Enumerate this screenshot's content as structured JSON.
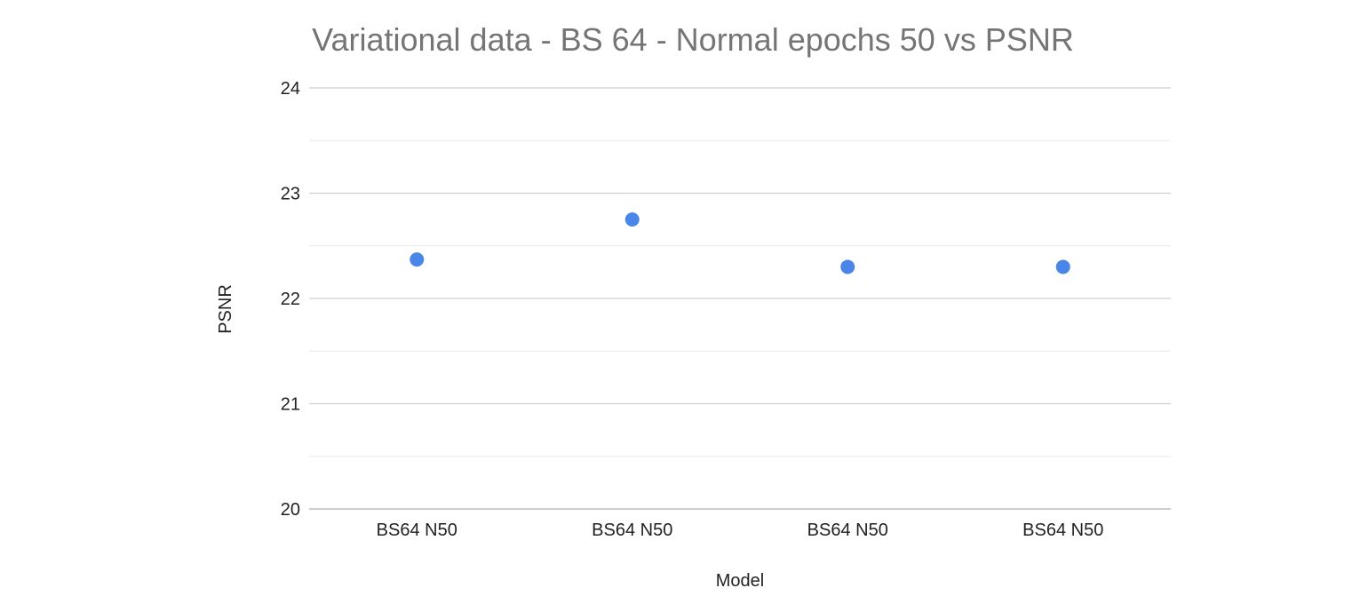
{
  "chart_data": {
    "type": "scatter",
    "title": "Variational data - BS 64 - Normal epochs 50 vs PSNR",
    "xlabel": "Model",
    "ylabel": "PSNR",
    "categories": [
      "BS64 N50",
      "BS64 N50",
      "BS64 N50",
      "BS64 N50"
    ],
    "series": [
      {
        "values": [
          22.37,
          22.75,
          22.3,
          22.3
        ],
        "color": "#4a86e8"
      }
    ],
    "ylim": [
      20,
      24
    ],
    "yticks": [
      20,
      21,
      22,
      23,
      24
    ],
    "minor_gridlines": true,
    "grid": true,
    "legend": "none"
  }
}
